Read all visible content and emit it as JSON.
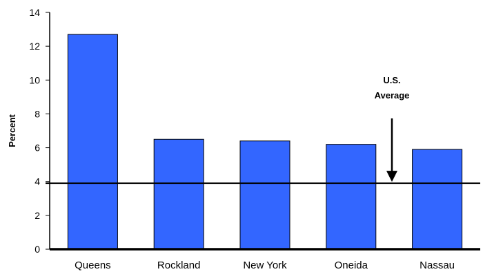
{
  "chart_data": {
    "type": "bar",
    "categories": [
      "Queens",
      "Rockland",
      "New York",
      "Oneida",
      "Nassau"
    ],
    "values": [
      12.7,
      6.5,
      6.4,
      6.2,
      5.9
    ],
    "ylabel": "Percent",
    "ylim": [
      0,
      14
    ],
    "yticks": [
      0,
      2,
      4,
      6,
      8,
      10,
      12,
      14
    ],
    "bar_color": "#3366ff",
    "reference_line": {
      "value": 3.9,
      "label_line1": "U.S.",
      "label_line2": "Average"
    },
    "grid": false
  }
}
